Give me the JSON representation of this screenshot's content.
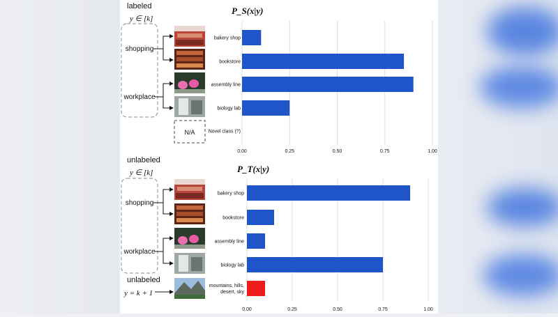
{
  "colors": {
    "bar": "#1f55c9",
    "novel_bar": "#ef1c1c",
    "grid": "#dddddd"
  },
  "labeled_panel": {
    "section_label": "labeled",
    "set_label": "y ∈ [k]",
    "title": "P_S(x|y)",
    "groups": [
      "shopping",
      "workplace"
    ],
    "na_label": "N/A"
  },
  "unlabeled_panel": {
    "section_label": "unlabeled",
    "set_label": "y ∈ [k]",
    "title": "P_T(x|y)",
    "groups": [
      "shopping",
      "workplace"
    ],
    "novel_section_label": "unlabeled",
    "novel_label": "y = k + 1"
  },
  "chart_data": [
    {
      "type": "bar",
      "orientation": "horizontal",
      "title": "P_S(x|y)",
      "categories": [
        "bakery shop",
        "bookstore",
        "assembly line",
        "biology lab",
        "Novel class (?)"
      ],
      "values": [
        0.1,
        0.85,
        0.9,
        0.25,
        0
      ],
      "xlim": [
        0,
        1
      ],
      "xticks": [
        "0.00",
        "0.25",
        "0.50",
        "0.75",
        "1.00"
      ],
      "grid": true
    },
    {
      "type": "bar",
      "orientation": "horizontal",
      "title": "P_T(x|y)",
      "categories": [
        "bakery shop",
        "bookstore",
        "assembly line",
        "biology lab",
        "mountains, hills, desert, sky"
      ],
      "values": [
        0.9,
        0.15,
        0.1,
        0.75,
        0.1
      ],
      "xlim": [
        0,
        1
      ],
      "xticks": [
        "0.00",
        "0.25",
        "0.50",
        "0.75",
        "1.00"
      ],
      "grid": true
    }
  ]
}
